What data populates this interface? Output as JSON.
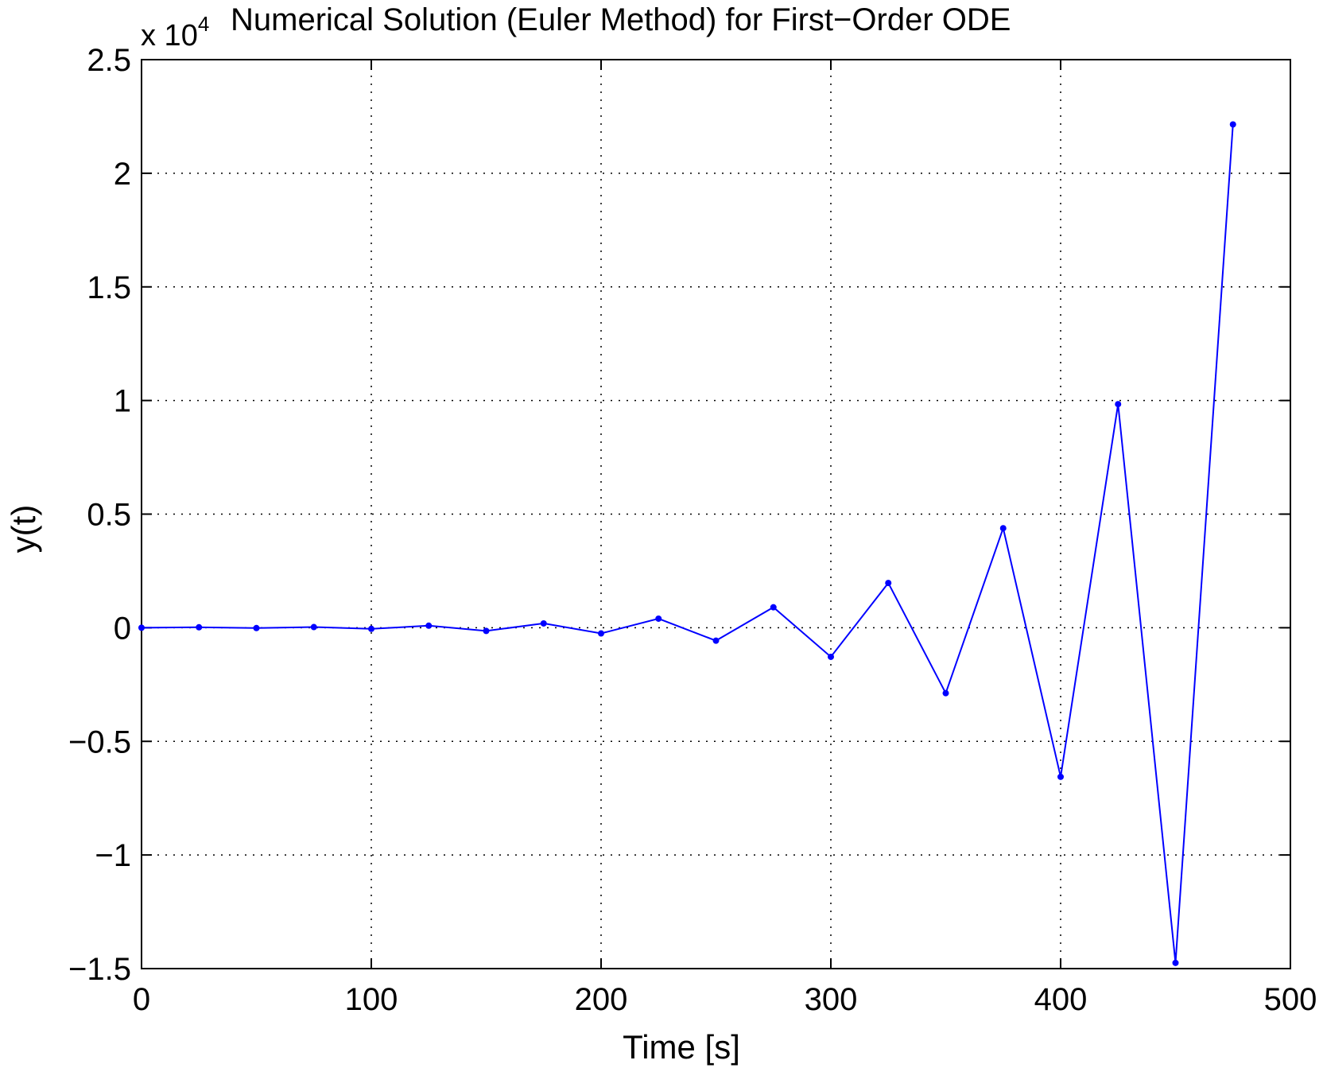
{
  "chart_data": {
    "type": "line",
    "title": "Numerical Solution (Euler Method) for First−Order ODE",
    "xlabel": "Time [s]",
    "ylabel": "y(t)",
    "y_exponent_label": {
      "prefix": "x 10",
      "power": "4"
    },
    "xlim": [
      0,
      500
    ],
    "ylim": [
      -1.5,
      2.5
    ],
    "y_scale_factor": 10000,
    "grid": true,
    "grid_style": "dotted",
    "x_ticks": [
      0,
      100,
      200,
      300,
      400,
      500
    ],
    "x_tick_labels": [
      "0",
      "100",
      "200",
      "300",
      "400",
      "500"
    ],
    "y_ticks": [
      2.5,
      2,
      1.5,
      1,
      0.5,
      0,
      -0.5,
      -1,
      -1.5
    ],
    "y_tick_labels": [
      "2.5",
      "2",
      "1.5",
      "1",
      "0.5",
      "0",
      "−0.5",
      "−1",
      "−1.5"
    ],
    "series": [
      {
        "color": "#0000ff",
        "marker": "dot",
        "x": [
          0,
          25,
          50,
          75,
          100,
          125,
          150,
          175,
          200,
          225,
          250,
          275,
          300,
          325,
          350,
          375,
          400,
          425,
          450,
          475
        ],
        "y": [
          0,
          0.002,
          -0.0015,
          0.003,
          -0.005,
          0.009,
          -0.014,
          0.019,
          -0.025,
          0.04,
          -0.057,
          0.09,
          -0.128,
          0.197,
          -0.288,
          0.438,
          -0.656,
          0.984,
          -1.475,
          2.215
        ]
      }
    ]
  }
}
